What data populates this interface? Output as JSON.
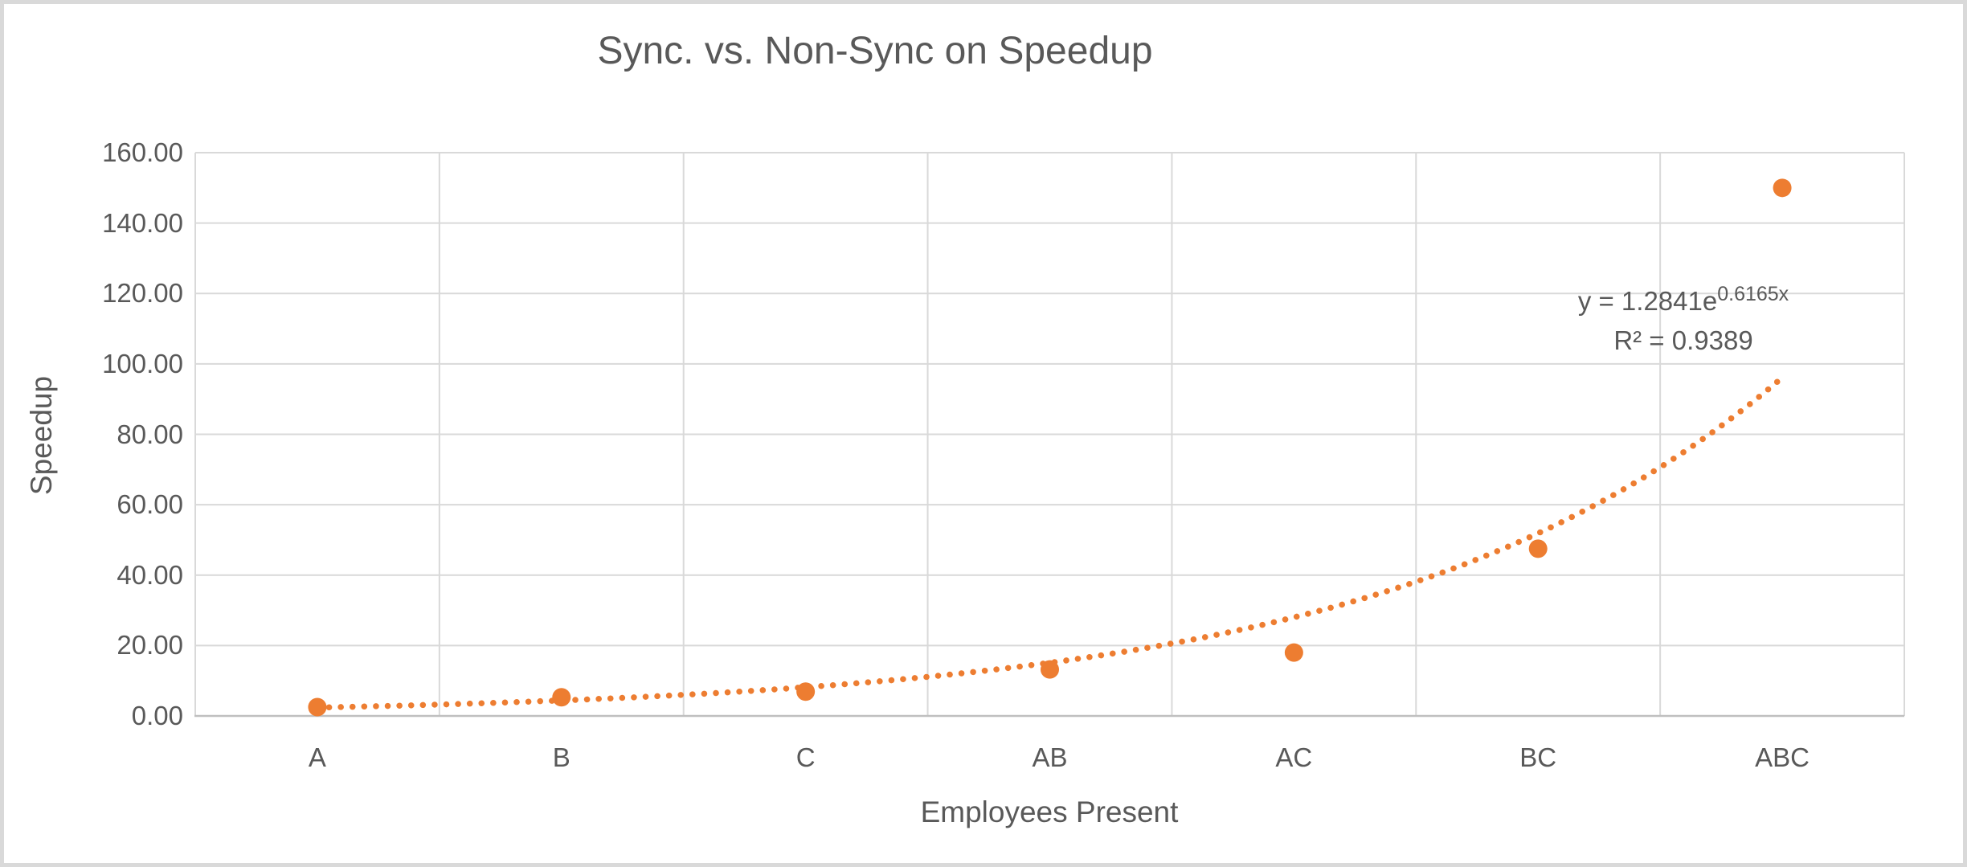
{
  "chart_data": {
    "type": "scatter",
    "title": "Sync. vs. Non-Sync on Speedup",
    "xlabel": "Employees Present",
    "ylabel": "Speedup",
    "categories": [
      "A",
      "B",
      "C",
      "AB",
      "AC",
      "BC",
      "ABC"
    ],
    "series": [
      {
        "name": "Speedup",
        "values": [
          2.5,
          5.3,
          6.9,
          13.2,
          18.0,
          47.5,
          150.0
        ]
      }
    ],
    "ylim": [
      0,
      160
    ],
    "ytick_step": 20,
    "ytick_labels": [
      "0.00",
      "20.00",
      "40.00",
      "60.00",
      "80.00",
      "100.00",
      "120.00",
      "140.00",
      "160.00"
    ],
    "grid": true,
    "legend": "none",
    "trendline": {
      "type": "exponential",
      "a": 1.2841,
      "b": 0.6165,
      "label_base": "y = 1.2841e",
      "label_exponent": "0.6165x",
      "r_squared_label": "R² = 0.9389",
      "style": "dotted"
    },
    "colors": {
      "marker": "#ED7D31",
      "trendline": "#ED7D31",
      "gridline": "#D9D9D9",
      "axis_line": "#BFBFBF",
      "text": "#595959",
      "frame_border": "#D9D9D9",
      "background": "#FFFFFF"
    }
  }
}
